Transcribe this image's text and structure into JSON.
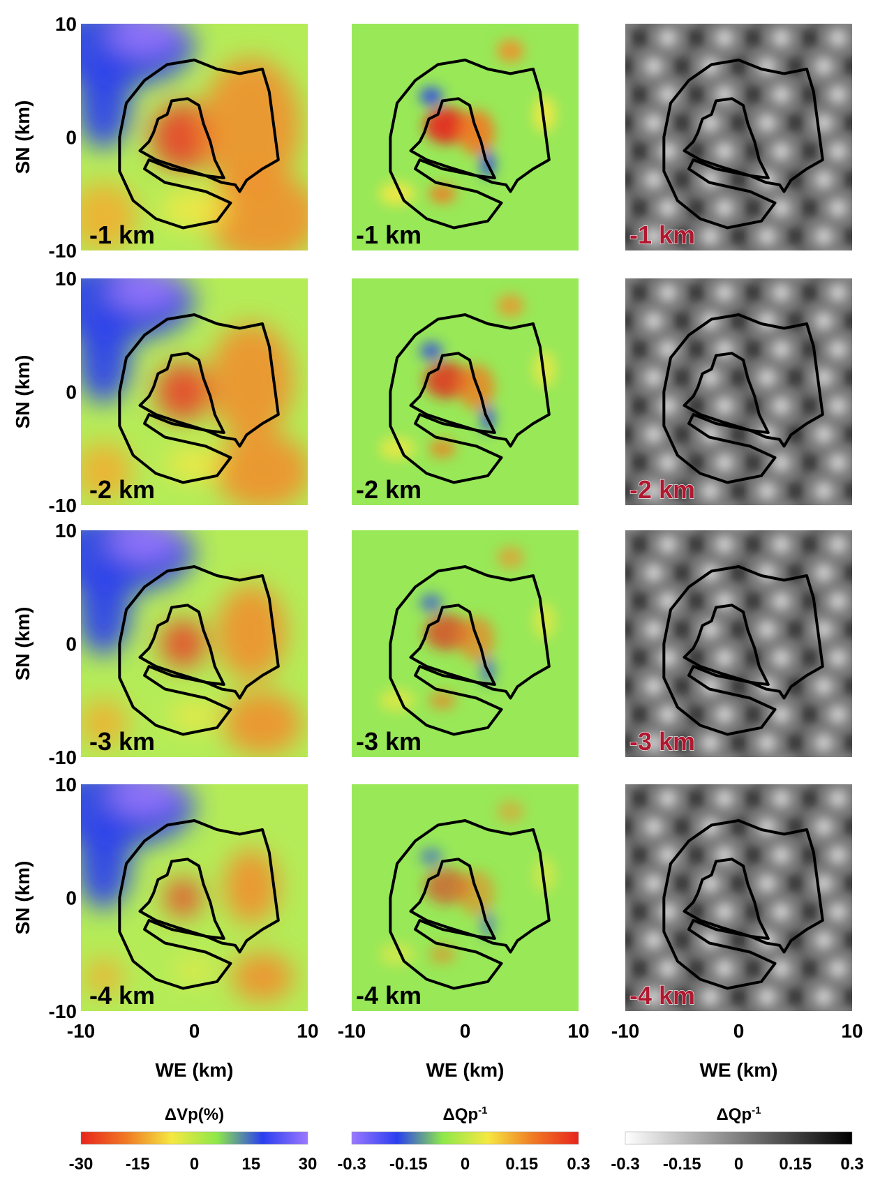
{
  "figure": {
    "y_label": "SN (km)",
    "x_label": "WE (km)",
    "xlim": [
      -10,
      10
    ],
    "ylim": [
      -10,
      10
    ],
    "xticks": [
      -10,
      0,
      10
    ],
    "yticks": [
      -10,
      0,
      10
    ],
    "depths": [
      "-1 km",
      "-2 km",
      "-3 km",
      "-4 km"
    ],
    "colorbars": [
      {
        "title": "ΔVp(%)",
        "lim": [
          -30,
          30
        ],
        "ticks": [
          -30,
          -15,
          0,
          15,
          30
        ],
        "colors": [
          "#e8241c",
          "#f07a24",
          "#f5e842",
          "#8ee84a",
          "#2a3ef0",
          "#9a78ff"
        ]
      },
      {
        "title": "ΔQp",
        "title_sup": "-1",
        "lim": [
          -0.3,
          0.3
        ],
        "ticks": [
          -0.3,
          -0.15,
          0,
          0.15,
          0.3
        ],
        "colors": [
          "#9a78ff",
          "#2a3ef0",
          "#8ee84a",
          "#f5e842",
          "#f07a24",
          "#e8241c"
        ]
      },
      {
        "title": "ΔQp",
        "title_sup": "-1",
        "lim": [
          -0.3,
          0.3
        ],
        "ticks": [
          -0.3,
          -0.15,
          0,
          0.15,
          0.3
        ],
        "colors": [
          "#ffffff",
          "#000000"
        ]
      }
    ]
  }
}
